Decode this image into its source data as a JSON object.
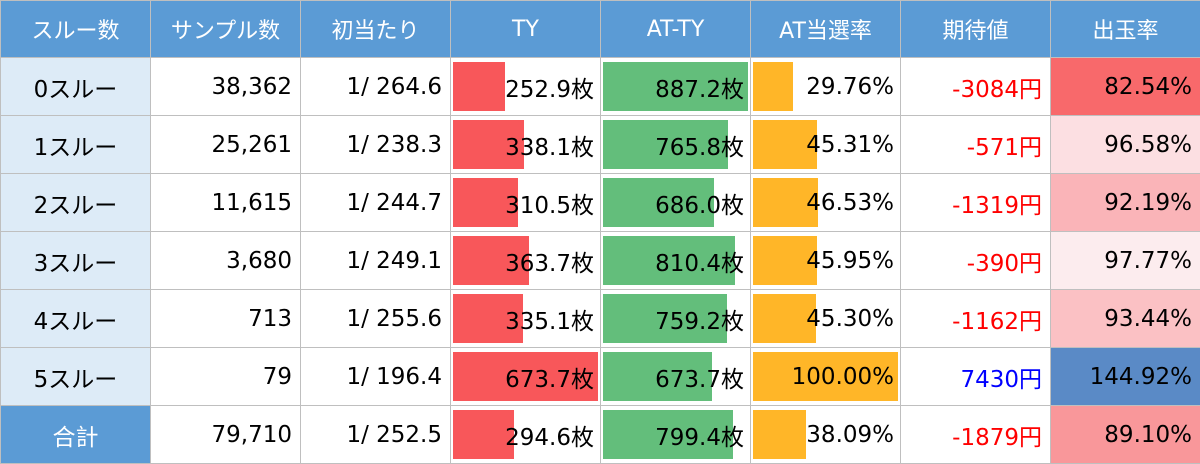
{
  "headers": [
    "スルー数",
    "サンプル数",
    "初当たり",
    "TY",
    "AT-TY",
    "AT当選率",
    "期待値",
    "出玉率"
  ],
  "rows": [
    {
      "label": "0スルー",
      "samples": "38,362",
      "first_hit": "1/ 264.6",
      "ty": "252.9枚",
      "ty_value": 252.9,
      "at_ty": "887.2枚",
      "at_ty_value": 887.2,
      "at_rate": "29.76%",
      "at_rate_value": 29.76,
      "expected": "-3084円",
      "expected_sign": "neg",
      "payout": "82.54%",
      "payout_color": "#f8696b"
    },
    {
      "label": "1スルー",
      "samples": "25,261",
      "first_hit": "1/ 238.3",
      "ty": "338.1枚",
      "ty_value": 338.1,
      "at_ty": "765.8枚",
      "at_ty_value": 765.8,
      "at_rate": "45.31%",
      "at_rate_value": 45.31,
      "expected": "-571円",
      "expected_sign": "neg",
      "payout": "96.58%",
      "payout_color": "#fcdfe2"
    },
    {
      "label": "2スルー",
      "samples": "11,615",
      "first_hit": "1/ 244.7",
      "ty": "310.5枚",
      "ty_value": 310.5,
      "at_ty": "686.0枚",
      "at_ty_value": 686.0,
      "at_rate": "46.53%",
      "at_rate_value": 46.53,
      "expected": "-1319円",
      "expected_sign": "neg",
      "payout": "92.19%",
      "payout_color": "#fab4b8"
    },
    {
      "label": "3スルー",
      "samples": "3,680",
      "first_hit": "1/ 249.1",
      "ty": "363.7枚",
      "ty_value": 363.7,
      "at_ty": "810.4枚",
      "at_ty_value": 810.4,
      "at_rate": "45.95%",
      "at_rate_value": 45.95,
      "expected": "-390円",
      "expected_sign": "neg",
      "payout": "97.77%",
      "payout_color": "#fcecee"
    },
    {
      "label": "4スルー",
      "samples": "713",
      "first_hit": "1/ 255.6",
      "ty": "335.1枚",
      "ty_value": 335.1,
      "at_ty": "759.2枚",
      "at_ty_value": 759.2,
      "at_rate": "45.30%",
      "at_rate_value": 45.3,
      "expected": "-1162円",
      "expected_sign": "neg",
      "payout": "93.44%",
      "payout_color": "#fbc1c4"
    },
    {
      "label": "5スルー",
      "samples": "79",
      "first_hit": "1/ 196.4",
      "ty": "673.7枚",
      "ty_value": 673.7,
      "at_ty": "673.7枚",
      "at_ty_value": 673.7,
      "at_rate": "100.00%",
      "at_rate_value": 100.0,
      "expected": "7430円",
      "expected_sign": "pos",
      "payout": "144.92%",
      "payout_color": "#5a8ac6"
    }
  ],
  "total": {
    "label": "合計",
    "samples": "79,710",
    "first_hit": "1/ 252.5",
    "ty": "294.6枚",
    "ty_value": 294.6,
    "at_ty": "799.4枚",
    "at_ty_value": 799.4,
    "at_rate": "38.09%",
    "at_rate_value": 38.09,
    "expected": "-1879円",
    "expected_sign": "neg",
    "payout": "89.10%",
    "payout_color": "#f9979a"
  },
  "scales": {
    "ty_max": 673.7,
    "at_ty_max": 887.2,
    "at_rate_max": 100.0
  },
  "colors": {
    "header_bg": "#5b9bd5",
    "label_bg": "#ddebf7",
    "ty_bar": "#f8575a",
    "at_ty_bar": "#63be7b",
    "at_rate_bar": "#ffb628",
    "negative": "#ff0000",
    "positive": "#0000ff"
  }
}
